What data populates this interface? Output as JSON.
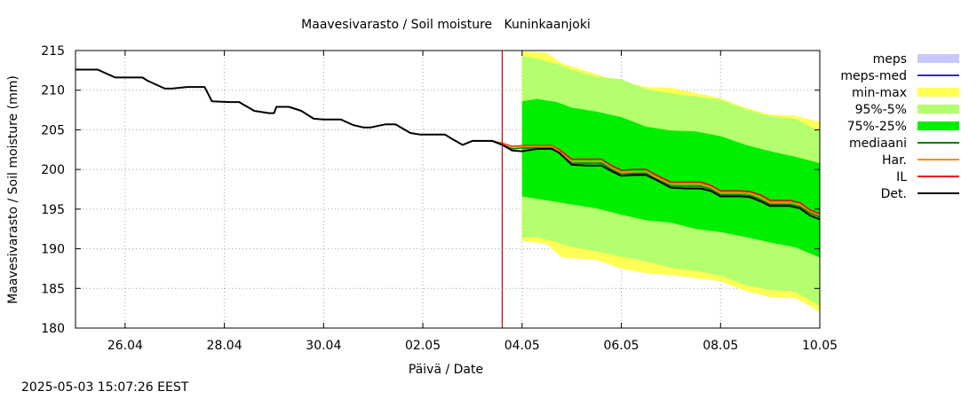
{
  "timestamp": "2025-05-03 15:07:26 EEST",
  "chart_data": {
    "type": "area",
    "title": "Maavesivarasto / Soil moisture   Kuninkaanjoki",
    "xlabel": "Päivä / Date",
    "ylabel": "Maavesivarasto / Soil moisture (mm)",
    "x_tick_labels": [
      "26.04",
      "28.04",
      "30.04",
      "02.05",
      "04.05",
      "06.05",
      "08.05",
      "10.05"
    ],
    "x_ticks": [
      1,
      3,
      5,
      7,
      9,
      11,
      13,
      15
    ],
    "xlim": [
      0,
      15
    ],
    "ylim": [
      180,
      215
    ],
    "y_ticks": [
      180,
      185,
      190,
      195,
      200,
      205,
      210,
      215
    ],
    "grid": true,
    "now_line_x": 8.6,
    "forecast_start_x": 9.0,
    "legend_position": "right",
    "legend": [
      {
        "label": "meps",
        "color": "#c8c8ff",
        "style": "box"
      },
      {
        "label": "meps-med",
        "color": "#3030c0",
        "style": "line"
      },
      {
        "label": "min-max",
        "color": "#ffff55",
        "style": "box"
      },
      {
        "label": "95%-5%",
        "color": "#b4ff6e",
        "style": "box"
      },
      {
        "label": "75%-25%",
        "color": "#00ee00",
        "style": "box"
      },
      {
        "label": "mediaani",
        "color": "#008000",
        "style": "line"
      },
      {
        "label": "Har.",
        "color": "#ff8c00",
        "style": "line"
      },
      {
        "label": "IL",
        "color": "#ee0000",
        "style": "line"
      },
      {
        "label": "Det.",
        "color": "#000000",
        "style": "line"
      }
    ],
    "series": [
      {
        "name": "Det.",
        "color": "#000000",
        "x": [
          0,
          0.45,
          0.55,
          0.8,
          1.0,
          1.35,
          1.45,
          1.8,
          1.95,
          2.25,
          2.35,
          2.6,
          2.75,
          3.1,
          3.3,
          3.35,
          3.55,
          3.6,
          3.9,
          4.0,
          4.05,
          4.3,
          4.55,
          4.8,
          5.0,
          5.35,
          5.6,
          5.8,
          5.95,
          6.25,
          6.45,
          6.75,
          6.95,
          7.25,
          7.45,
          7.55,
          7.8,
          8.0,
          8.2,
          8.4,
          8.6,
          8.8,
          9.0,
          9.3,
          9.6,
          9.75,
          10.0,
          10.3,
          10.6,
          10.8,
          11.0,
          11.25,
          11.5,
          11.7,
          12.0,
          12.3,
          12.6,
          12.8,
          13.0,
          13.4,
          13.6,
          13.8,
          14.0,
          14.4,
          14.6,
          14.8,
          15.0
        ],
        "y": [
          212.6,
          212.6,
          212.3,
          211.6,
          211.6,
          211.6,
          211.2,
          210.2,
          210.2,
          210.4,
          210.4,
          210.4,
          208.6,
          208.5,
          208.5,
          208.3,
          207.6,
          207.4,
          207.1,
          207.1,
          207.9,
          207.9,
          207.4,
          206.4,
          206.3,
          206.3,
          205.6,
          205.3,
          205.3,
          205.7,
          205.7,
          204.6,
          204.4,
          204.4,
          204.4,
          204.0,
          203.1,
          203.6,
          203.6,
          203.6,
          203.1,
          202.4,
          202.3,
          202.6,
          202.6,
          202.1,
          200.6,
          200.5,
          200.5,
          199.8,
          199.2,
          199.3,
          199.3,
          198.7,
          197.7,
          197.6,
          197.6,
          197.3,
          196.6,
          196.6,
          196.5,
          196.0,
          195.4,
          195.4,
          195.1,
          194.2,
          193.7
        ]
      },
      {
        "name": "IL",
        "color": "#ee0000",
        "x": [
          8.0,
          8.4,
          8.6,
          8.8,
          9.0,
          9.3,
          9.6,
          9.75,
          10.0,
          10.3,
          10.6,
          10.8,
          11.0,
          11.25,
          11.5,
          11.7,
          12.0,
          12.3,
          12.6,
          12.8,
          13.0,
          13.4,
          13.6,
          13.8,
          14.0,
          14.4,
          14.6,
          14.8,
          15.0
        ],
        "y": [
          203.6,
          203.6,
          203.3,
          202.9,
          203.0,
          203.0,
          203.0,
          202.5,
          201.3,
          201.3,
          201.3,
          200.5,
          199.9,
          200.0,
          200.0,
          199.3,
          198.4,
          198.4,
          198.4,
          198.0,
          197.3,
          197.3,
          197.2,
          196.8,
          196.1,
          196.1,
          195.8,
          194.9,
          194.4
        ]
      },
      {
        "name": "Har.",
        "color": "#ff8c00",
        "x": [
          8.0,
          8.4,
          8.6,
          8.8,
          9.0,
          9.3,
          9.6,
          9.75,
          10.0,
          10.3,
          10.6,
          10.8,
          11.0,
          11.25,
          11.5,
          11.7,
          12.0,
          12.3,
          12.6,
          12.8,
          13.0,
          13.4,
          13.6,
          13.8,
          14.0,
          14.4,
          14.6,
          14.8,
          15.0
        ],
        "y": [
          203.6,
          203.6,
          203.2,
          202.8,
          202.9,
          202.9,
          202.9,
          202.3,
          201.0,
          201.0,
          201.0,
          200.2,
          199.6,
          199.7,
          199.7,
          199.0,
          198.2,
          198.2,
          198.2,
          197.8,
          197.1,
          197.1,
          197.0,
          196.5,
          195.8,
          195.8,
          195.6,
          194.7,
          194.2
        ]
      },
      {
        "name": "mediaani",
        "color": "#008000",
        "x": [
          8.0,
          8.4,
          8.6,
          8.8,
          9.0,
          9.3,
          9.6,
          9.75,
          10.0,
          10.3,
          10.6,
          10.8,
          11.0,
          11.25,
          11.5,
          11.7,
          12.0,
          12.3,
          12.6,
          12.8,
          13.0,
          13.4,
          13.6,
          13.8,
          14.0,
          14.4,
          14.6,
          14.8,
          15.0
        ],
        "y": [
          203.6,
          203.6,
          203.1,
          202.6,
          202.7,
          202.7,
          202.7,
          202.1,
          200.8,
          200.8,
          200.8,
          200.0,
          199.4,
          199.5,
          199.5,
          198.8,
          197.9,
          197.9,
          197.9,
          197.5,
          196.8,
          196.8,
          196.7,
          196.2,
          195.6,
          195.6,
          195.3,
          194.5,
          194.0
        ]
      }
    ],
    "bands": [
      {
        "name": "min-max",
        "color": "#ffff55",
        "x": [
          9.0,
          9.5,
          9.8,
          10.5,
          11.0,
          11.5,
          12.0,
          13.0,
          13.5,
          14.0,
          14.5,
          14.8,
          15.0
        ],
        "upper": [
          214.9,
          214.7,
          213.4,
          212.0,
          211.1,
          210.4,
          210.3,
          209.0,
          207.8,
          206.9,
          206.8,
          206.3,
          206.0
        ],
        "lower": [
          191.0,
          190.6,
          188.9,
          188.6,
          187.5,
          186.9,
          186.7,
          185.9,
          184.7,
          183.9,
          183.8,
          182.8,
          182.0
        ]
      },
      {
        "name": "95%-5%",
        "color": "#b4ff6e",
        "x": [
          9.0,
          9.3,
          9.7,
          10.0,
          10.5,
          11.0,
          11.5,
          12.0,
          12.5,
          13.0,
          13.5,
          14.0,
          14.5,
          15.0
        ],
        "upper": [
          214.3,
          214.0,
          213.3,
          212.6,
          211.7,
          211.4,
          210.1,
          209.6,
          209.2,
          208.8,
          207.6,
          206.7,
          206.4,
          204.8
        ],
        "lower": [
          191.4,
          191.5,
          190.8,
          190.2,
          189.7,
          189.0,
          188.4,
          187.6,
          187.2,
          186.6,
          185.4,
          184.8,
          184.6,
          182.8
        ]
      },
      {
        "name": "75%-25%",
        "color": "#00ee00",
        "x": [
          9.0,
          9.3,
          9.7,
          10.0,
          10.5,
          11.0,
          11.5,
          12.0,
          12.5,
          13.0,
          13.5,
          14.0,
          14.5,
          15.0
        ],
        "upper": [
          208.6,
          208.9,
          208.5,
          207.8,
          207.3,
          206.6,
          205.4,
          204.9,
          204.8,
          204.2,
          203.1,
          202.3,
          201.6,
          200.8
        ],
        "lower": [
          196.6,
          196.3,
          195.9,
          195.6,
          195.1,
          194.3,
          193.6,
          193.3,
          192.5,
          192.1,
          191.5,
          190.8,
          190.2,
          188.9
        ]
      }
    ]
  }
}
